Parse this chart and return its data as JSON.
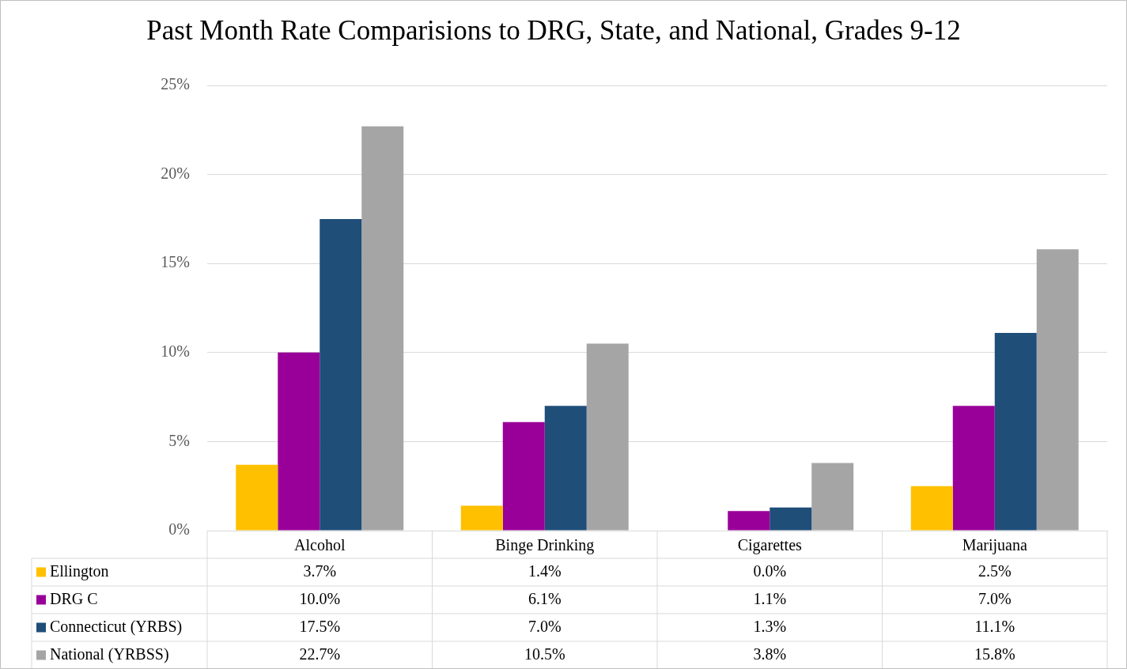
{
  "chart_data": {
    "type": "bar",
    "title": "Past Month Rate Comparisions to DRG, State, and National, Grades 9-12",
    "categories": [
      "Alcohol",
      "Binge Drinking",
      "Cigarettes",
      "Marijuana"
    ],
    "series": [
      {
        "name": "Ellington",
        "color": "#ffc000",
        "values": [
          3.7,
          1.4,
          0.0,
          2.5
        ],
        "value_labels": [
          "3.7%",
          "1.4%",
          "0.0%",
          "2.5%"
        ]
      },
      {
        "name": "DRG C",
        "color": "#990099",
        "values": [
          10.0,
          6.1,
          1.1,
          7.0
        ],
        "value_labels": [
          "10.0%",
          "6.1%",
          "1.1%",
          "7.0%"
        ]
      },
      {
        "name": "Connecticut (YRBS)",
        "color": "#1f4e79",
        "values": [
          17.5,
          7.0,
          1.3,
          11.1
        ],
        "value_labels": [
          "17.5%",
          "7.0%",
          "1.3%",
          "11.1%"
        ]
      },
      {
        "name": "National (YRBSS)",
        "color": "#a5a5a5",
        "values": [
          22.7,
          10.5,
          3.8,
          15.8
        ],
        "value_labels": [
          "22.7%",
          "10.5%",
          "3.8%",
          "15.8%"
        ]
      }
    ],
    "ylim": [
      0,
      25
    ],
    "yticks": [
      {
        "value": 0,
        "label": "0%"
      },
      {
        "value": 5,
        "label": "5%"
      },
      {
        "value": 10,
        "label": "10%"
      },
      {
        "value": 15,
        "label": "15%"
      },
      {
        "value": 20,
        "label": "20%"
      },
      {
        "value": 25,
        "label": "25%"
      }
    ],
    "grid": "y",
    "legend": "bottom"
  }
}
